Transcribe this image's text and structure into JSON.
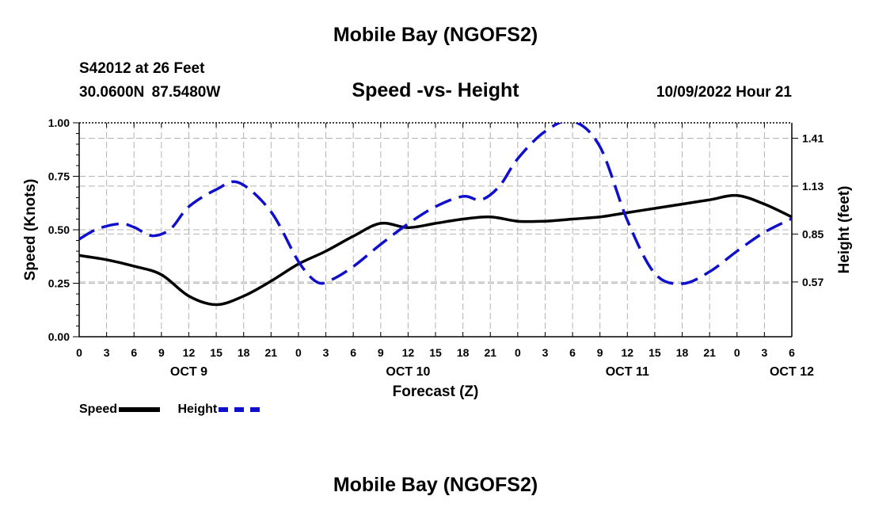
{
  "header": {
    "title": "Mobile Bay (NGOFS2)",
    "station": "S42012 at 26 Feet",
    "coordinates": "30.0600N  87.5480W",
    "subtitle": "Speed -vs- Height",
    "datetime": "10/09/2022 Hour 21"
  },
  "footer": {
    "title": "Mobile Bay (NGOFS2)"
  },
  "legend": {
    "speed_label": "Speed",
    "height_label": "Height"
  },
  "chart_data": {
    "type": "line",
    "title": "Speed -vs- Height",
    "xlabel": "Forecast (Z)",
    "ylabel": "Speed (Knots)",
    "y2label": "Height (feet)",
    "x_unit": "hours since OCT 9 00Z",
    "xlim": [
      0,
      78
    ],
    "ylim": [
      0,
      1.0
    ],
    "y2lim": [
      0.25,
      1.5
    ],
    "x_tick_labels": [
      "0",
      "3",
      "6",
      "9",
      "12",
      "15",
      "18",
      "21",
      "0",
      "3",
      "6",
      "9",
      "12",
      "15",
      "18",
      "21",
      "0",
      "3",
      "6",
      "9",
      "12",
      "15",
      "18",
      "21",
      "0",
      "3",
      "6"
    ],
    "y_ticks": [
      0.0,
      0.25,
      0.5,
      0.75,
      1.0
    ],
    "y_tick_labels": [
      "0.00",
      "0.25",
      "0.50",
      "0.75",
      "1.00"
    ],
    "y2_ticks": [
      0.57,
      0.85,
      1.13,
      1.41
    ],
    "y2_tick_labels": [
      "0.57",
      "0.85",
      "1.13",
      "1.41"
    ],
    "date_labels": [
      {
        "label": "OCT 9",
        "x": 12
      },
      {
        "label": "OCT 10",
        "x": 36
      },
      {
        "label": "OCT 11",
        "x": 60
      },
      {
        "label": "OCT 12",
        "x": 78
      }
    ],
    "grid": true,
    "series": [
      {
        "name": "Speed",
        "axis": "left",
        "color": "#000000",
        "style": "solid",
        "x": [
          0,
          3,
          6,
          9,
          12,
          15,
          18,
          21,
          24,
          27,
          30,
          33,
          36,
          39,
          42,
          45,
          48,
          51,
          54,
          57,
          60,
          63,
          66,
          69,
          72,
          75,
          78
        ],
        "values": [
          0.38,
          0.36,
          0.33,
          0.29,
          0.19,
          0.15,
          0.19,
          0.26,
          0.34,
          0.4,
          0.47,
          0.53,
          0.51,
          0.53,
          0.55,
          0.56,
          0.54,
          0.54,
          0.55,
          0.56,
          0.58,
          0.6,
          0.62,
          0.64,
          0.66,
          0.62,
          0.56
        ]
      },
      {
        "name": "Height",
        "axis": "right",
        "color": "#1010cc",
        "style": "dashed",
        "x": [
          0,
          2,
          4.5,
          6,
          8,
          10,
          12,
          15,
          17.5,
          21,
          24,
          26,
          27.5,
          30,
          33,
          36,
          39,
          42,
          44,
          46,
          48,
          51,
          54,
          57,
          60,
          63,
          66,
          69,
          72,
          75,
          78
        ],
        "values": [
          0.82,
          0.88,
          0.91,
          0.89,
          0.84,
          0.88,
          1.01,
          1.11,
          1.15,
          0.98,
          0.69,
          0.57,
          0.58,
          0.66,
          0.79,
          0.91,
          1.01,
          1.07,
          1.05,
          1.13,
          1.29,
          1.45,
          1.51,
          1.36,
          0.93,
          0.62,
          0.56,
          0.63,
          0.75,
          0.86,
          0.94
        ]
      }
    ]
  }
}
